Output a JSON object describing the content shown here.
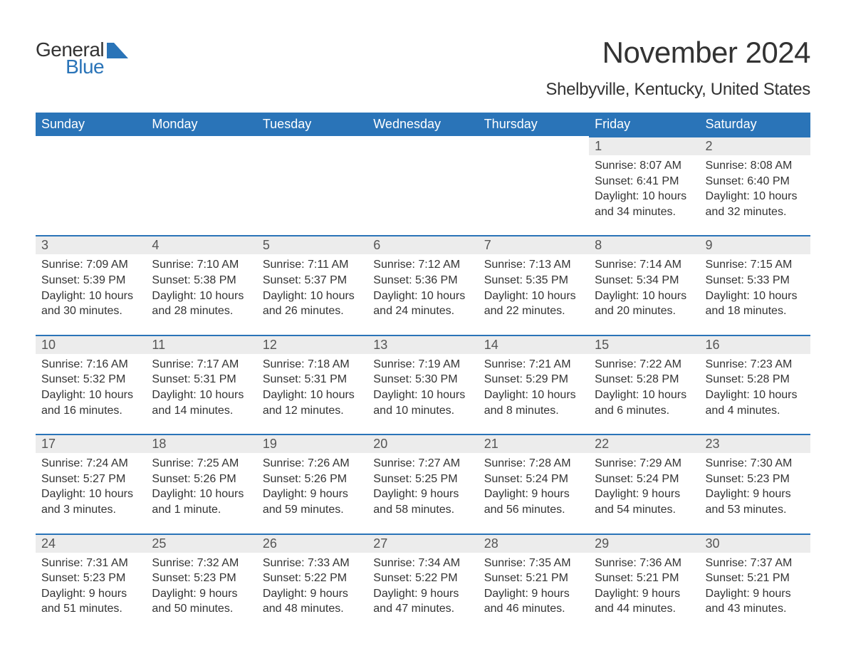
{
  "logo": {
    "general": "General",
    "blue": "Blue",
    "shape_color": "#2a74b8"
  },
  "title": "November 2024",
  "location": "Shelbyville, Kentucky, United States",
  "colors": {
    "header_bg": "#2a74b8",
    "header_text": "#ffffff",
    "day_bar_bg": "#ececec",
    "day_bar_border": "#2a74b8",
    "body_text": "#333333",
    "page_bg": "#ffffff"
  },
  "day_headers": [
    "Sunday",
    "Monday",
    "Tuesday",
    "Wednesday",
    "Thursday",
    "Friday",
    "Saturday"
  ],
  "weeks": [
    [
      null,
      null,
      null,
      null,
      null,
      {
        "n": "1",
        "sunrise": "Sunrise: 8:07 AM",
        "sunset": "Sunset: 6:41 PM",
        "daylight": "Daylight: 10 hours and 34 minutes."
      },
      {
        "n": "2",
        "sunrise": "Sunrise: 8:08 AM",
        "sunset": "Sunset: 6:40 PM",
        "daylight": "Daylight: 10 hours and 32 minutes."
      }
    ],
    [
      {
        "n": "3",
        "sunrise": "Sunrise: 7:09 AM",
        "sunset": "Sunset: 5:39 PM",
        "daylight": "Daylight: 10 hours and 30 minutes."
      },
      {
        "n": "4",
        "sunrise": "Sunrise: 7:10 AM",
        "sunset": "Sunset: 5:38 PM",
        "daylight": "Daylight: 10 hours and 28 minutes."
      },
      {
        "n": "5",
        "sunrise": "Sunrise: 7:11 AM",
        "sunset": "Sunset: 5:37 PM",
        "daylight": "Daylight: 10 hours and 26 minutes."
      },
      {
        "n": "6",
        "sunrise": "Sunrise: 7:12 AM",
        "sunset": "Sunset: 5:36 PM",
        "daylight": "Daylight: 10 hours and 24 minutes."
      },
      {
        "n": "7",
        "sunrise": "Sunrise: 7:13 AM",
        "sunset": "Sunset: 5:35 PM",
        "daylight": "Daylight: 10 hours and 22 minutes."
      },
      {
        "n": "8",
        "sunrise": "Sunrise: 7:14 AM",
        "sunset": "Sunset: 5:34 PM",
        "daylight": "Daylight: 10 hours and 20 minutes."
      },
      {
        "n": "9",
        "sunrise": "Sunrise: 7:15 AM",
        "sunset": "Sunset: 5:33 PM",
        "daylight": "Daylight: 10 hours and 18 minutes."
      }
    ],
    [
      {
        "n": "10",
        "sunrise": "Sunrise: 7:16 AM",
        "sunset": "Sunset: 5:32 PM",
        "daylight": "Daylight: 10 hours and 16 minutes."
      },
      {
        "n": "11",
        "sunrise": "Sunrise: 7:17 AM",
        "sunset": "Sunset: 5:31 PM",
        "daylight": "Daylight: 10 hours and 14 minutes."
      },
      {
        "n": "12",
        "sunrise": "Sunrise: 7:18 AM",
        "sunset": "Sunset: 5:31 PM",
        "daylight": "Daylight: 10 hours and 12 minutes."
      },
      {
        "n": "13",
        "sunrise": "Sunrise: 7:19 AM",
        "sunset": "Sunset: 5:30 PM",
        "daylight": "Daylight: 10 hours and 10 minutes."
      },
      {
        "n": "14",
        "sunrise": "Sunrise: 7:21 AM",
        "sunset": "Sunset: 5:29 PM",
        "daylight": "Daylight: 10 hours and 8 minutes."
      },
      {
        "n": "15",
        "sunrise": "Sunrise: 7:22 AM",
        "sunset": "Sunset: 5:28 PM",
        "daylight": "Daylight: 10 hours and 6 minutes."
      },
      {
        "n": "16",
        "sunrise": "Sunrise: 7:23 AM",
        "sunset": "Sunset: 5:28 PM",
        "daylight": "Daylight: 10 hours and 4 minutes."
      }
    ],
    [
      {
        "n": "17",
        "sunrise": "Sunrise: 7:24 AM",
        "sunset": "Sunset: 5:27 PM",
        "daylight": "Daylight: 10 hours and 3 minutes."
      },
      {
        "n": "18",
        "sunrise": "Sunrise: 7:25 AM",
        "sunset": "Sunset: 5:26 PM",
        "daylight": "Daylight: 10 hours and 1 minute."
      },
      {
        "n": "19",
        "sunrise": "Sunrise: 7:26 AM",
        "sunset": "Sunset: 5:26 PM",
        "daylight": "Daylight: 9 hours and 59 minutes."
      },
      {
        "n": "20",
        "sunrise": "Sunrise: 7:27 AM",
        "sunset": "Sunset: 5:25 PM",
        "daylight": "Daylight: 9 hours and 58 minutes."
      },
      {
        "n": "21",
        "sunrise": "Sunrise: 7:28 AM",
        "sunset": "Sunset: 5:24 PM",
        "daylight": "Daylight: 9 hours and 56 minutes."
      },
      {
        "n": "22",
        "sunrise": "Sunrise: 7:29 AM",
        "sunset": "Sunset: 5:24 PM",
        "daylight": "Daylight: 9 hours and 54 minutes."
      },
      {
        "n": "23",
        "sunrise": "Sunrise: 7:30 AM",
        "sunset": "Sunset: 5:23 PM",
        "daylight": "Daylight: 9 hours and 53 minutes."
      }
    ],
    [
      {
        "n": "24",
        "sunrise": "Sunrise: 7:31 AM",
        "sunset": "Sunset: 5:23 PM",
        "daylight": "Daylight: 9 hours and 51 minutes."
      },
      {
        "n": "25",
        "sunrise": "Sunrise: 7:32 AM",
        "sunset": "Sunset: 5:23 PM",
        "daylight": "Daylight: 9 hours and 50 minutes."
      },
      {
        "n": "26",
        "sunrise": "Sunrise: 7:33 AM",
        "sunset": "Sunset: 5:22 PM",
        "daylight": "Daylight: 9 hours and 48 minutes."
      },
      {
        "n": "27",
        "sunrise": "Sunrise: 7:34 AM",
        "sunset": "Sunset: 5:22 PM",
        "daylight": "Daylight: 9 hours and 47 minutes."
      },
      {
        "n": "28",
        "sunrise": "Sunrise: 7:35 AM",
        "sunset": "Sunset: 5:21 PM",
        "daylight": "Daylight: 9 hours and 46 minutes."
      },
      {
        "n": "29",
        "sunrise": "Sunrise: 7:36 AM",
        "sunset": "Sunset: 5:21 PM",
        "daylight": "Daylight: 9 hours and 44 minutes."
      },
      {
        "n": "30",
        "sunrise": "Sunrise: 7:37 AM",
        "sunset": "Sunset: 5:21 PM",
        "daylight": "Daylight: 9 hours and 43 minutes."
      }
    ]
  ]
}
